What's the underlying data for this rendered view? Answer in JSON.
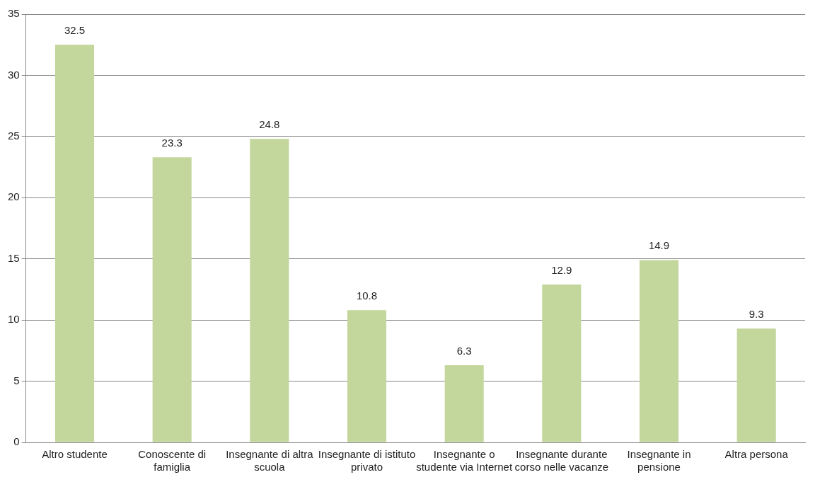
{
  "chart_data": {
    "type": "bar",
    "categories": [
      "Altro studente",
      "Conoscente di famiglia",
      "Insegnante di altra scuola",
      "Insegnante di istituto privato",
      "Insegnante o studente via Internet",
      "Insegnante durante corso nelle vacanze",
      "Insegnante in pensione",
      "Altra persona"
    ],
    "values": [
      32.5,
      23.3,
      24.8,
      10.8,
      6.3,
      12.9,
      14.9,
      9.3
    ],
    "color": "#c3d69b",
    "ylim": [
      0,
      35
    ],
    "yticks": [
      0,
      5,
      10,
      15,
      20,
      25,
      30,
      35
    ],
    "grid": "y",
    "data_labels": true,
    "legend": false
  }
}
